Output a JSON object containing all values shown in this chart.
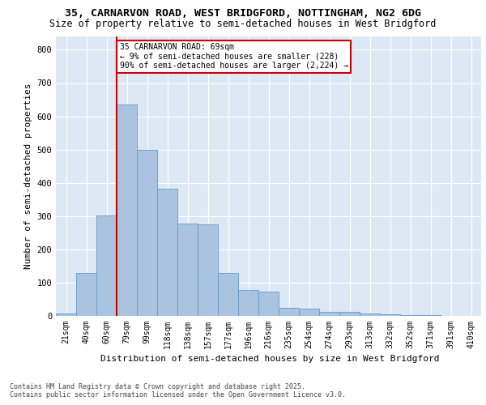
{
  "title_line1": "35, CARNARVON ROAD, WEST BRIDGFORD, NOTTINGHAM, NG2 6DG",
  "title_line2": "Size of property relative to semi-detached houses in West Bridgford",
  "xlabel": "Distribution of semi-detached houses by size in West Bridgford",
  "ylabel": "Number of semi-detached properties",
  "footnote": "Contains HM Land Registry data © Crown copyright and database right 2025.\nContains public sector information licensed under the Open Government Licence v3.0.",
  "categories": [
    "21sqm",
    "40sqm",
    "60sqm",
    "79sqm",
    "99sqm",
    "118sqm",
    "138sqm",
    "157sqm",
    "177sqm",
    "196sqm",
    "216sqm",
    "235sqm",
    "254sqm",
    "274sqm",
    "293sqm",
    "313sqm",
    "332sqm",
    "352sqm",
    "371sqm",
    "391sqm",
    "410sqm"
  ],
  "bar_values": [
    8,
    128,
    303,
    635,
    500,
    383,
    278,
    275,
    130,
    78,
    72,
    25,
    22,
    12,
    12,
    8,
    5,
    3,
    2,
    1,
    0
  ],
  "bar_color": "#aac4e0",
  "bar_edge_color": "#6699cc",
  "vline_color": "#cc0000",
  "annotation_box_color": "#ffffff",
  "annotation_box_edge": "#cc0000",
  "ylim": [
    0,
    840
  ],
  "yticks": [
    0,
    100,
    200,
    300,
    400,
    500,
    600,
    700,
    800
  ],
  "bg_color": "#dde8f5",
  "grid_color": "#ffffff",
  "title_fontsize": 9.5,
  "subtitle_fontsize": 8.5,
  "axis_label_fontsize": 8,
  "tick_fontsize": 7,
  "annotation_fontsize": 7,
  "footnote_fontsize": 6
}
